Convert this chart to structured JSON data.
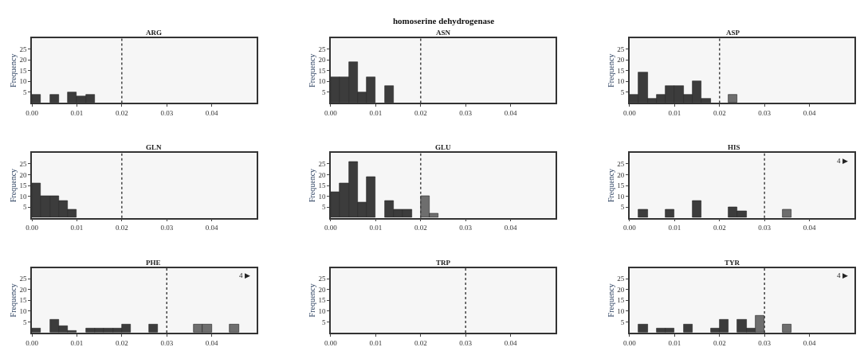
{
  "chart_data": [
    {
      "type": "histogram",
      "title": "ARG",
      "ylabel": "Frequency",
      "bins": [
        0,
        0.002,
        0.004,
        0.006,
        0.008,
        0.01,
        0.012,
        0.014
      ],
      "values": [
        4,
        0,
        4,
        0,
        5,
        3,
        4
      ],
      "colors": [
        "#3c3c3c",
        "#3c3c3c",
        "#3c3c3c",
        "#3c3c3c",
        "#3c3c3c",
        "#3c3c3c",
        "#3c3c3c"
      ],
      "xlim": [
        0,
        0.05
      ],
      "ylim": [
        0,
        30
      ],
      "xticks": [
        {
          "value": 0,
          "label": "0.00"
        },
        {
          "value": 0.01,
          "label": "0.01"
        },
        {
          "value": 0.02,
          "label": "0.02"
        },
        {
          "value": 0.03,
          "label": "0.03"
        },
        {
          "value": 0.04,
          "label": "0.04"
        }
      ],
      "yticks": [
        5,
        10,
        15,
        20,
        25
      ],
      "ref_lines": [
        {
          "axis": "x",
          "value": 0.02,
          "color": "#444444",
          "line_style": "dotted"
        }
      ],
      "grid": false
    },
    {
      "type": "histogram",
      "subtitle": "homoserine dehydrogenase",
      "title": "ASN",
      "ylabel": "Frequency",
      "bins": [
        0,
        0.002,
        0.004,
        0.006,
        0.008,
        0.01,
        0.012,
        0.014
      ],
      "values": [
        12,
        12,
        19,
        5,
        12,
        0,
        8
      ],
      "colors": [
        "#3c3c3c",
        "#3c3c3c",
        "#3c3c3c",
        "#3c3c3c",
        "#3c3c3c",
        "#3c3c3c",
        "#3c3c3c"
      ],
      "xlim": [
        0,
        0.05
      ],
      "ylim": [
        0,
        30
      ],
      "xticks": [
        {
          "value": 0,
          "label": "0.00"
        },
        {
          "value": 0.01,
          "label": "0.01"
        },
        {
          "value": 0.02,
          "label": "0.02"
        },
        {
          "value": 0.03,
          "label": "0.03"
        },
        {
          "value": 0.04,
          "label": "0.04"
        }
      ],
      "yticks": [
        5,
        10,
        15,
        20,
        25
      ],
      "ref_lines": [
        {
          "axis": "x",
          "value": 0.02,
          "color": "#444444",
          "line_style": "dotted"
        }
      ],
      "grid": false
    },
    {
      "type": "histogram",
      "title": "ASP",
      "ylabel": "Frequency",
      "bins": [
        0,
        0.002,
        0.004,
        0.006,
        0.008,
        0.01,
        0.012,
        0.014,
        0.016,
        0.018,
        0.02,
        0.022,
        0.024
      ],
      "values": [
        4,
        14,
        2,
        4,
        8,
        8,
        4,
        10,
        2,
        0,
        0,
        4
      ],
      "colors": [
        "#3c3c3c",
        "#3c3c3c",
        "#3c3c3c",
        "#3c3c3c",
        "#3c3c3c",
        "#3c3c3c",
        "#3c3c3c",
        "#3c3c3c",
        "#3c3c3c",
        "#3c3c3c",
        "#6e6e6e",
        "#6e6e6e"
      ],
      "xlim": [
        0,
        0.05
      ],
      "ylim": [
        0,
        30
      ],
      "xticks": [
        {
          "value": 0,
          "label": "0.00"
        },
        {
          "value": 0.01,
          "label": "0.01"
        },
        {
          "value": 0.02,
          "label": "0.02"
        },
        {
          "value": 0.03,
          "label": "0.03"
        },
        {
          "value": 0.04,
          "label": "0.04"
        }
      ],
      "yticks": [
        5,
        10,
        15,
        20,
        25
      ],
      "ref_lines": [
        {
          "axis": "x",
          "value": 0.02,
          "color": "#444444",
          "line_style": "dotted"
        }
      ],
      "grid": false
    },
    {
      "type": "histogram",
      "title": "GLN",
      "ylabel": "Frequency",
      "bins": [
        0,
        0.002,
        0.004,
        0.006,
        0.008,
        0.01
      ],
      "values": [
        16,
        10,
        10,
        8,
        4
      ],
      "colors": [
        "#3c3c3c",
        "#3c3c3c",
        "#3c3c3c",
        "#3c3c3c",
        "#3c3c3c"
      ],
      "xlim": [
        0,
        0.05
      ],
      "ylim": [
        0,
        30
      ],
      "xticks": [
        {
          "value": 0,
          "label": "0.00"
        },
        {
          "value": 0.01,
          "label": "0.01"
        },
        {
          "value": 0.02,
          "label": "0.02"
        },
        {
          "value": 0.03,
          "label": "0.03"
        },
        {
          "value": 0.04,
          "label": "0.04"
        }
      ],
      "yticks": [
        5,
        10,
        15,
        20,
        25
      ],
      "ref_lines": [
        {
          "axis": "x",
          "value": 0.02,
          "color": "#444444",
          "line_style": "dotted"
        }
      ],
      "grid": false
    },
    {
      "type": "histogram",
      "title": "GLU",
      "ylabel": "Frequency",
      "bins": [
        0,
        0.002,
        0.004,
        0.006,
        0.008,
        0.01,
        0.012,
        0.014,
        0.016,
        0.018,
        0.02,
        0.022,
        0.024
      ],
      "values": [
        12,
        16,
        26,
        7,
        19,
        0,
        8,
        4,
        4,
        0,
        10,
        2
      ],
      "colors": [
        "#3c3c3c",
        "#3c3c3c",
        "#3c3c3c",
        "#3c3c3c",
        "#3c3c3c",
        "#3c3c3c",
        "#3c3c3c",
        "#3c3c3c",
        "#3c3c3c",
        "#3c3c3c",
        "#6e6e6e",
        "#6e6e6e"
      ],
      "xlim": [
        0,
        0.05
      ],
      "ylim": [
        0,
        30
      ],
      "xticks": [
        {
          "value": 0,
          "label": "0.00"
        },
        {
          "value": 0.01,
          "label": "0.01"
        },
        {
          "value": 0.02,
          "label": "0.02"
        },
        {
          "value": 0.03,
          "label": "0.03"
        },
        {
          "value": 0.04,
          "label": "0.04"
        }
      ],
      "yticks": [
        5,
        10,
        15,
        20,
        25
      ],
      "ref_lines": [
        {
          "axis": "x",
          "value": 0.02,
          "color": "#444444",
          "line_style": "dotted"
        }
      ],
      "grid": false
    },
    {
      "type": "histogram",
      "title": "HIS",
      "ylabel": "Frequency",
      "annotations": [
        "4 ▶"
      ],
      "bins": [
        0,
        0.002,
        0.004,
        0.006,
        0.008,
        0.01,
        0.012,
        0.014,
        0.016,
        0.018,
        0.02,
        0.022,
        0.024,
        0.026,
        0.028,
        0.03,
        0.032,
        0.034,
        0.036
      ],
      "values": [
        0,
        4,
        0,
        0,
        4,
        0,
        0,
        8,
        0,
        0,
        0,
        5,
        3,
        0,
        0,
        0,
        0,
        4
      ],
      "colors": [
        "#3c3c3c",
        "#3c3c3c",
        "#3c3c3c",
        "#3c3c3c",
        "#3c3c3c",
        "#3c3c3c",
        "#3c3c3c",
        "#3c3c3c",
        "#3c3c3c",
        "#3c3c3c",
        "#3c3c3c",
        "#3c3c3c",
        "#3c3c3c",
        "#3c3c3c",
        "#3c3c3c",
        "#6e6e6e",
        "#6e6e6e",
        "#6e6e6e"
      ],
      "xlim": [
        0,
        0.05
      ],
      "ylim": [
        0,
        30
      ],
      "xticks": [
        {
          "value": 0,
          "label": "0.00"
        },
        {
          "value": 0.01,
          "label": "0.01"
        },
        {
          "value": 0.02,
          "label": "0.02"
        },
        {
          "value": 0.03,
          "label": "0.03"
        },
        {
          "value": 0.04,
          "label": "0.04"
        }
      ],
      "yticks": [
        5,
        10,
        15,
        20,
        25
      ],
      "ref_lines": [
        {
          "axis": "x",
          "value": 0.03,
          "color": "#444444",
          "line_style": "dotted"
        }
      ],
      "grid": false
    },
    {
      "type": "histogram",
      "title": "PHE",
      "ylabel": "Frequency",
      "annotations": [
        "4 ▶"
      ],
      "bins": [
        0,
        0.002,
        0.004,
        0.006,
        0.008,
        0.01,
        0.012,
        0.014,
        0.016,
        0.018,
        0.02,
        0.022,
        0.024,
        0.026,
        0.028,
        0.03,
        0.032,
        0.034,
        0.036,
        0.038,
        0.04,
        0.042,
        0.044,
        0.046
      ],
      "values": [
        2,
        0,
        6,
        3,
        1,
        0,
        2,
        2,
        2,
        2,
        4,
        0,
        0,
        4,
        0,
        0,
        0,
        0,
        4,
        4,
        0,
        0,
        4
      ],
      "colors": [
        "#3c3c3c",
        "#3c3c3c",
        "#3c3c3c",
        "#3c3c3c",
        "#3c3c3c",
        "#3c3c3c",
        "#3c3c3c",
        "#3c3c3c",
        "#3c3c3c",
        "#3c3c3c",
        "#3c3c3c",
        "#3c3c3c",
        "#3c3c3c",
        "#3c3c3c",
        "#3c3c3c",
        "#6e6e6e",
        "#6e6e6e",
        "#6e6e6e",
        "#6e6e6e",
        "#6e6e6e",
        "#6e6e6e",
        "#6e6e6e",
        "#6e6e6e"
      ],
      "xlim": [
        0,
        0.05
      ],
      "ylim": [
        0,
        30
      ],
      "xticks": [
        {
          "value": 0,
          "label": "0.00"
        },
        {
          "value": 0.01,
          "label": "0.01"
        },
        {
          "value": 0.02,
          "label": "0.02"
        },
        {
          "value": 0.03,
          "label": "0.03"
        },
        {
          "value": 0.04,
          "label": "0.04"
        }
      ],
      "yticks": [
        5,
        10,
        15,
        20,
        25
      ],
      "ref_lines": [
        {
          "axis": "x",
          "value": 0.03,
          "color": "#444444",
          "line_style": "dotted"
        }
      ],
      "grid": false
    },
    {
      "type": "histogram",
      "title": "TRP",
      "ylabel": "Frequency",
      "xlim": [
        0,
        0.05
      ],
      "ylim": [
        0,
        30
      ],
      "xticks": [
        {
          "value": 0,
          "label": "0.00"
        },
        {
          "value": 0.01,
          "label": "0.01"
        },
        {
          "value": 0.02,
          "label": "0.02"
        },
        {
          "value": 0.03,
          "label": "0.03"
        },
        {
          "value": 0.04,
          "label": "0.04"
        }
      ],
      "yticks": [
        5,
        10,
        15,
        20,
        25
      ],
      "ref_lines": [
        {
          "axis": "x",
          "value": 0.03,
          "color": "#444444",
          "line_style": "dotted"
        }
      ],
      "grid": false
    },
    {
      "type": "histogram",
      "title": "TYR",
      "ylabel": "Frequency",
      "annotations": [
        "4 ▶"
      ],
      "bins": [
        0,
        0.002,
        0.004,
        0.006,
        0.008,
        0.01,
        0.012,
        0.014,
        0.016,
        0.018,
        0.02,
        0.022,
        0.024,
        0.026,
        0.028,
        0.03,
        0.032,
        0.034,
        0.036
      ],
      "values": [
        0,
        4,
        0,
        2,
        2,
        0,
        4,
        0,
        0,
        2,
        6,
        0,
        6,
        2,
        8,
        0,
        0,
        4
      ],
      "colors": [
        "#3c3c3c",
        "#3c3c3c",
        "#3c3c3c",
        "#3c3c3c",
        "#3c3c3c",
        "#3c3c3c",
        "#3c3c3c",
        "#3c3c3c",
        "#3c3c3c",
        "#3c3c3c",
        "#3c3c3c",
        "#3c3c3c",
        "#3c3c3c",
        "#3c3c3c",
        "#6e6e6e",
        "#6e6e6e",
        "#6e6e6e",
        "#6e6e6e"
      ],
      "xlim": [
        0,
        0.05
      ],
      "ylim": [
        0,
        30
      ],
      "xticks": [
        {
          "value": 0,
          "label": "0.00"
        },
        {
          "value": 0.01,
          "label": "0.01"
        },
        {
          "value": 0.02,
          "label": "0.02"
        },
        {
          "value": 0.03,
          "label": "0.03"
        },
        {
          "value": 0.04,
          "label": "0.04"
        }
      ],
      "yticks": [
        5,
        10,
        15,
        20,
        25
      ],
      "ref_lines": [
        {
          "axis": "x",
          "value": 0.03,
          "color": "#444444",
          "line_style": "dotted"
        }
      ],
      "grid": false
    }
  ]
}
